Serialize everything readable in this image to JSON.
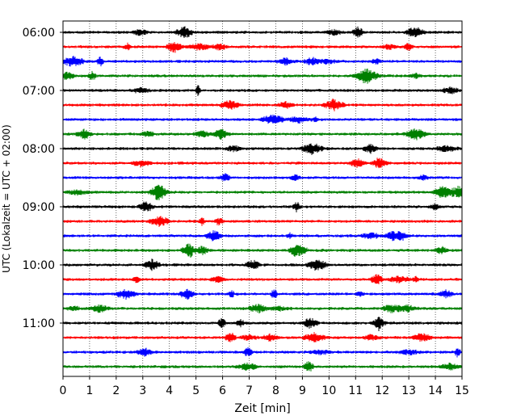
{
  "chart_data": {
    "type": "line",
    "xlabel": "Zeit  [min]",
    "ylabel": "UTC (Lokalzeit = UTC + 02:00)",
    "xlim": [
      0,
      15
    ],
    "x_ticks": [
      "0",
      "1",
      "2",
      "3",
      "4",
      "5",
      "6",
      "7",
      "8",
      "9",
      "10",
      "11",
      "12",
      "13",
      "14",
      "15"
    ],
    "y_tick_labels": [
      "06:00",
      "07:00",
      "08:00",
      "09:00",
      "10:00",
      "11:00"
    ],
    "grid": "vertical dotted",
    "trace_colors": [
      "#000000",
      "#ff0000",
      "#0000ff",
      "#008000"
    ],
    "traces": [
      {
        "start": "06:00",
        "color": "#000000"
      },
      {
        "start": "06:15",
        "color": "#ff0000"
      },
      {
        "start": "06:30",
        "color": "#0000ff"
      },
      {
        "start": "06:45",
        "color": "#008000"
      },
      {
        "start": "07:00",
        "color": "#000000"
      },
      {
        "start": "07:15",
        "color": "#ff0000"
      },
      {
        "start": "07:30",
        "color": "#0000ff"
      },
      {
        "start": "07:45",
        "color": "#008000"
      },
      {
        "start": "08:00",
        "color": "#000000"
      },
      {
        "start": "08:15",
        "color": "#ff0000"
      },
      {
        "start": "08:30",
        "color": "#0000ff"
      },
      {
        "start": "08:45",
        "color": "#008000"
      },
      {
        "start": "09:00",
        "color": "#000000"
      },
      {
        "start": "09:15",
        "color": "#ff0000"
      },
      {
        "start": "09:30",
        "color": "#0000ff"
      },
      {
        "start": "09:45",
        "color": "#008000"
      },
      {
        "start": "10:00",
        "color": "#000000"
      },
      {
        "start": "10:15",
        "color": "#ff0000"
      },
      {
        "start": "10:30",
        "color": "#0000ff"
      },
      {
        "start": "10:45",
        "color": "#008000"
      },
      {
        "start": "11:00",
        "color": "#000000"
      },
      {
        "start": "11:15",
        "color": "#ff0000"
      },
      {
        "start": "11:30",
        "color": "#0000ff"
      },
      {
        "start": "11:45",
        "color": "#008000"
      }
    ]
  }
}
